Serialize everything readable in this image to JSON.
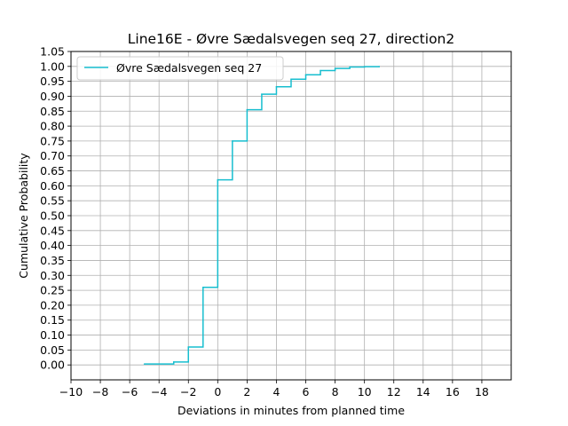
{
  "chart_data": {
    "type": "line",
    "title": "Line16E - Øvre Sædalsvegen seq 27, direction2",
    "xlabel": "Deviations in minutes from planned time",
    "ylabel": "Cumulative Probability",
    "xlim": [
      -10,
      20
    ],
    "ylim": [
      -0.05,
      1.05
    ],
    "xticks": [
      -10,
      -8,
      -6,
      -4,
      -2,
      0,
      2,
      4,
      6,
      8,
      10,
      12,
      14,
      16,
      18
    ],
    "xtick_labels": [
      "−10",
      "−8",
      "−6",
      "−4",
      "−2",
      "0",
      "2",
      "4",
      "6",
      "8",
      "10",
      "12",
      "14",
      "16",
      "18"
    ],
    "yticks": [
      0.0,
      0.05,
      0.1,
      0.15,
      0.2,
      0.25,
      0.3,
      0.35,
      0.4,
      0.45,
      0.5,
      0.55,
      0.6,
      0.65,
      0.7,
      0.75,
      0.8,
      0.85,
      0.9,
      0.95,
      1.0,
      1.05
    ],
    "ytick_labels": [
      "0.00",
      "0.05",
      "0.10",
      "0.15",
      "0.20",
      "0.25",
      "0.30",
      "0.35",
      "0.40",
      "0.45",
      "0.50",
      "0.55",
      "0.60",
      "0.65",
      "0.70",
      "0.75",
      "0.80",
      "0.85",
      "0.90",
      "0.95",
      "1.00",
      "1.05"
    ],
    "grid": true,
    "legend_position": "top-left",
    "step": "post",
    "series": [
      {
        "name": "Øvre Sædalsvegen seq 27",
        "color": "#17becf",
        "x": [
          -5,
          -3,
          -2,
          -1,
          0,
          1,
          2,
          3,
          4,
          5,
          6,
          7,
          8,
          9,
          10,
          11
        ],
        "y": [
          0.003,
          0.01,
          0.06,
          0.26,
          0.62,
          0.75,
          0.855,
          0.907,
          0.932,
          0.957,
          0.972,
          0.986,
          0.993,
          0.998,
          0.999,
          1.0
        ]
      }
    ]
  }
}
